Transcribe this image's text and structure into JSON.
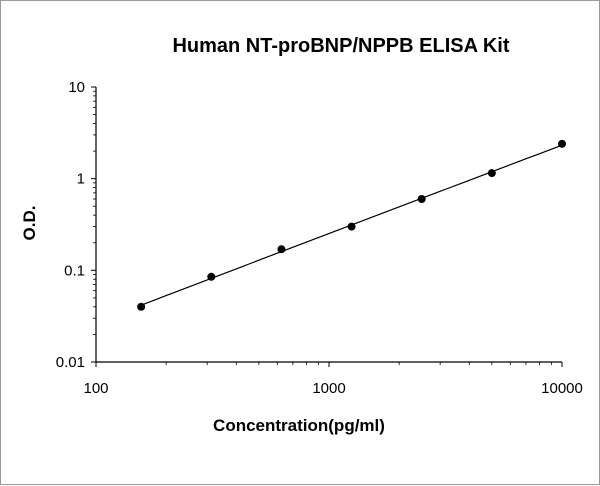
{
  "chart_data": {
    "type": "scatter",
    "title": "Human NT-proBNP/NPPB ELISA Kit",
    "xlabel": "Concentration(pg/ml)",
    "ylabel": "O.D.",
    "x_scale": "log",
    "y_scale": "log",
    "xlim": [
      100,
      10000
    ],
    "ylim": [
      0.01,
      10
    ],
    "x_ticks": [
      "100",
      "1000",
      "10000"
    ],
    "y_ticks": [
      "0.01",
      "0.1",
      "1",
      "10"
    ],
    "grid": false,
    "legend": "none",
    "series": [
      {
        "x": [
          156.25,
          312.5,
          625,
          1250,
          2500,
          5000,
          10000
        ],
        "y": [
          0.04,
          0.085,
          0.17,
          0.3,
          0.6,
          1.15,
          2.4
        ],
        "marker": "circle",
        "fit_line": true,
        "color": "#000000"
      }
    ]
  }
}
